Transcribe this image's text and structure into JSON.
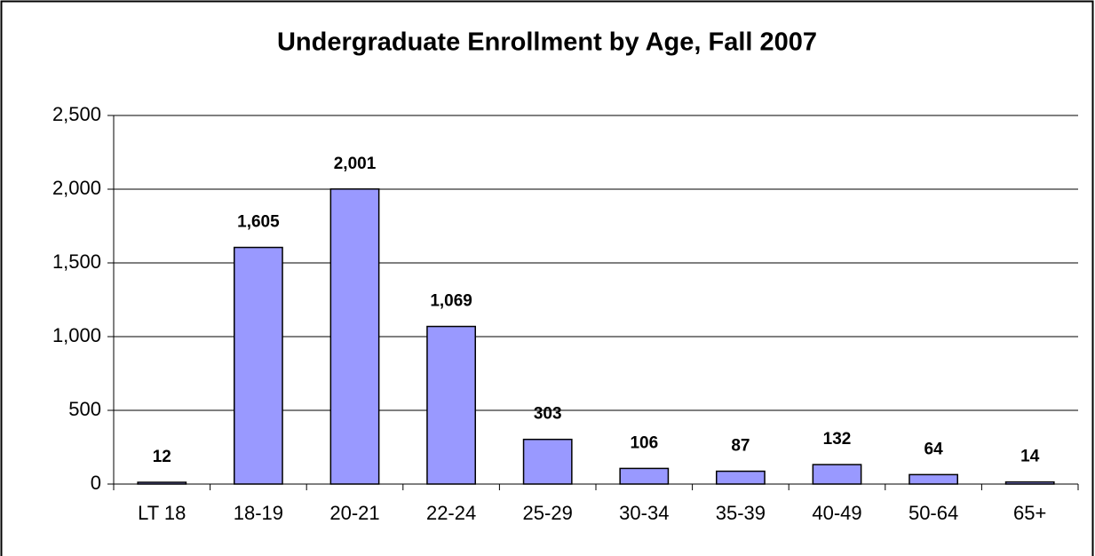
{
  "chart_data": {
    "type": "bar",
    "title": "Undergraduate Enrollment by Age, Fall 2007",
    "categories": [
      "LT 18",
      "18-19",
      "20-21",
      "22-24",
      "25-29",
      "30-34",
      "35-39",
      "40-49",
      "50-64",
      "65+"
    ],
    "values": [
      12,
      1605,
      2001,
      1069,
      303,
      106,
      87,
      132,
      64,
      14
    ],
    "value_labels": [
      "12",
      "1,605",
      "2,001",
      "1,069",
      "303",
      "106",
      "87",
      "132",
      "64",
      "14"
    ],
    "color": "#9999ff",
    "ylim": [
      0,
      2500
    ],
    "yticks": [
      0,
      500,
      {
        "value": 1000,
        "label": "1,000"
      },
      {
        "value": 1500,
        "label": "1,500"
      },
      {
        "value": 2000,
        "label": "2,000"
      },
      {
        "value": 2500,
        "label": "2,500"
      }
    ],
    "grid": true
  }
}
